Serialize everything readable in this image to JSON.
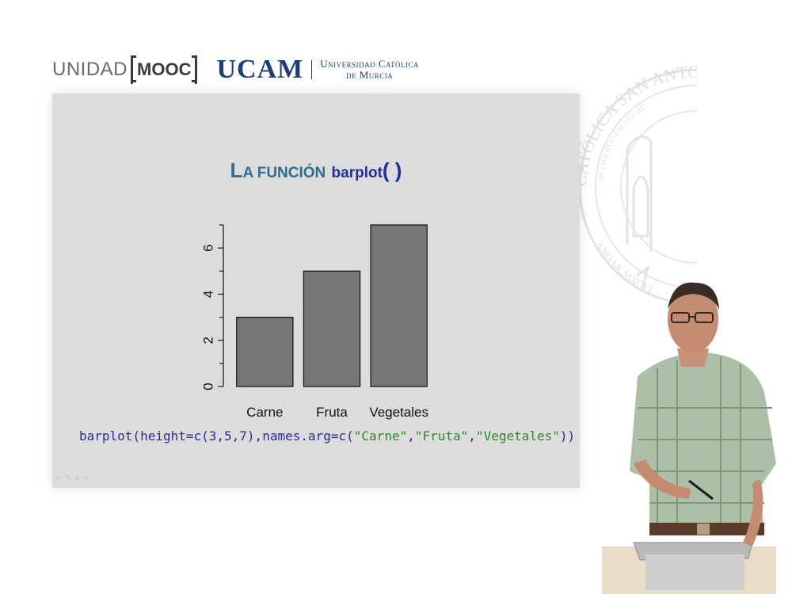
{
  "header": {
    "unidad": "UNIDAD",
    "mooc": "MOOC",
    "ucam": "UCAM",
    "univ_line1": "Universidad Católica",
    "univ_line2": "de Murcia"
  },
  "seal": {
    "top_text": "CATÓLICA SAN ANTONIO",
    "inner_text": "IN LIBERTATEM VOCAT",
    "bottom_text": "ANO MCMXCVI"
  },
  "slide": {
    "title_big_letter": "L",
    "title_rest": "A FUNCIÓN",
    "title_fn": "barplot",
    "title_parens": "( )",
    "code": {
      "prefix": "barplot(height=c(3,5,7),names.arg=c(",
      "s1": "\"Carne\"",
      "comma1": ",",
      "s2": "\"Fruta\"",
      "comma2": ",",
      "s3": "\"Vegetales\"",
      "suffix": "))"
    }
  },
  "chart_data": {
    "type": "bar",
    "categories": [
      "Carne",
      "Fruta",
      "Vegetales"
    ],
    "values": [
      3,
      5,
      7
    ],
    "y_ticks": [
      "0",
      "2",
      "4",
      "6"
    ],
    "ylim": [
      0,
      7
    ],
    "bar_color": "#767676",
    "grid": false
  },
  "colors": {
    "slide_bg": "#dcdcdc",
    "title": "#2f6e8f",
    "code": "#2a2aa0",
    "code_string": "#2a8a2a",
    "ucam": "#1c3f73"
  }
}
